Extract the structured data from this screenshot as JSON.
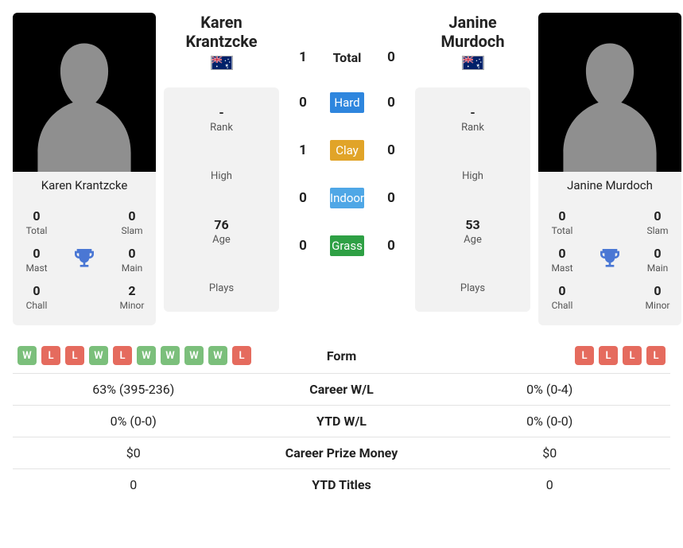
{
  "colors": {
    "bg": "#ffffff",
    "card_bg": "#f2f2f2",
    "border": "#e3e3e3",
    "trophy": "#4a77d4",
    "silhouette_bg": "#000000",
    "silhouette_fg": "#8f8f8f",
    "form_w": "#7bbf7b",
    "form_l": "#e56b5e",
    "surfaces": {
      "hard": "#2e86de",
      "clay": "#e1a428",
      "indoor": "#4fa7e6",
      "grass": "#2ea044"
    }
  },
  "player1": {
    "name": "Karen Krantzcke",
    "country": "AUS",
    "titles": {
      "total": "0",
      "slam": "0",
      "mast": "0",
      "main": "0",
      "chall": "0",
      "minor": "2"
    },
    "rank": "-",
    "high": "",
    "age": "76",
    "plays": "",
    "form": [
      "W",
      "L",
      "L",
      "W",
      "L",
      "W",
      "W",
      "W",
      "W",
      "L"
    ],
    "career_wl": "63% (395-236)",
    "ytd_wl": "0% (0-0)",
    "career_prize": "$0",
    "ytd_titles": "0"
  },
  "player2": {
    "name": "Janine Murdoch",
    "country": "AUS",
    "titles": {
      "total": "0",
      "slam": "0",
      "mast": "0",
      "main": "0",
      "chall": "0",
      "minor": "0"
    },
    "rank": "-",
    "high": "",
    "age": "53",
    "plays": "",
    "form": [
      "L",
      "L",
      "L",
      "L"
    ],
    "career_wl": "0% (0-4)",
    "ytd_wl": "0% (0-0)",
    "career_prize": "$0",
    "ytd_titles": "0"
  },
  "h2h": {
    "total": {
      "label": "Total",
      "p1": "1",
      "p2": "0"
    },
    "hard": {
      "label": "Hard",
      "p1": "0",
      "p2": "0"
    },
    "clay": {
      "label": "Clay",
      "p1": "1",
      "p2": "0"
    },
    "indoor": {
      "label": "Indoor",
      "p1": "0",
      "p2": "0"
    },
    "grass": {
      "label": "Grass",
      "p1": "0",
      "p2": "0"
    }
  },
  "labels": {
    "rank": "Rank",
    "high": "High",
    "age": "Age",
    "plays": "Plays",
    "total": "Total",
    "slam": "Slam",
    "mast": "Mast",
    "main": "Main",
    "chall": "Chall",
    "minor": "Minor",
    "form": "Form",
    "career_wl": "Career W/L",
    "ytd_wl": "YTD W/L",
    "career_prize": "Career Prize Money",
    "ytd_titles": "YTD Titles"
  }
}
